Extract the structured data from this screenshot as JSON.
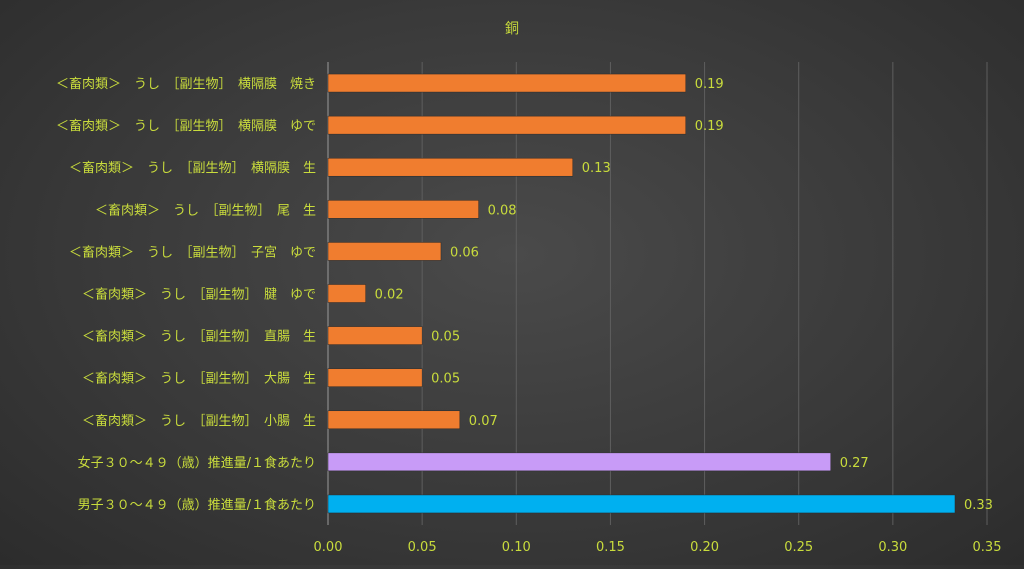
{
  "chart_data": {
    "type": "bar",
    "orientation": "horizontal",
    "title": "銅",
    "xlabel": "",
    "ylabel": "",
    "xlim": [
      0,
      0.35
    ],
    "x_ticks": [
      "0.00",
      "0.05",
      "0.10",
      "0.15",
      "0.20",
      "0.25",
      "0.30",
      "0.35"
    ],
    "tick_values": [
      0,
      0.05,
      0.1,
      0.15,
      0.2,
      0.25,
      0.3,
      0.35
    ],
    "grid": true,
    "legend": "none",
    "bars": [
      {
        "label": "＜畜肉類＞　うし　［副生物］　横隔膜　焼き",
        "value": 0.19,
        "value_label": "0.19",
        "color": "#F07D2F"
      },
      {
        "label": "＜畜肉類＞　うし　［副生物］　横隔膜　ゆで",
        "value": 0.19,
        "value_label": "0.19",
        "color": "#F07D2F"
      },
      {
        "label": "＜畜肉類＞　うし　［副生物］　横隔膜　生",
        "value": 0.13,
        "value_label": "0.13",
        "color": "#F07D2F"
      },
      {
        "label": "＜畜肉類＞　うし　［副生物］　尾　生",
        "value": 0.08,
        "value_label": "0.08",
        "color": "#F07D2F"
      },
      {
        "label": "＜畜肉類＞　うし　［副生物］　子宮　ゆで",
        "value": 0.06,
        "value_label": "0.06",
        "color": "#F07D2F"
      },
      {
        "label": "＜畜肉類＞　うし　［副生物］　腱　ゆで",
        "value": 0.02,
        "value_label": "0.02",
        "color": "#F07D2F"
      },
      {
        "label": "＜畜肉類＞　うし　［副生物］　直腸　生",
        "value": 0.05,
        "value_label": "0.05",
        "color": "#F07D2F"
      },
      {
        "label": "＜畜肉類＞　うし　［副生物］　大腸　生",
        "value": 0.05,
        "value_label": "0.05",
        "color": "#F07D2F"
      },
      {
        "label": "＜畜肉類＞　うし　［副生物］　小腸　生",
        "value": 0.07,
        "value_label": "0.07",
        "color": "#F07D2F"
      },
      {
        "label": "女子３０～４９（歳）推進量/１食あたり",
        "value": 0.267,
        "value_label": "0.27",
        "color": "#C89BF7"
      },
      {
        "label": "男子３０～４９（歳）推進量/１食あたり",
        "value": 0.333,
        "value_label": "0.33",
        "color": "#00B0F0"
      }
    ],
    "colors": {
      "text": "#C9DC3C",
      "grid": "#5E5E5E",
      "axis": "#9A9A9A"
    }
  }
}
